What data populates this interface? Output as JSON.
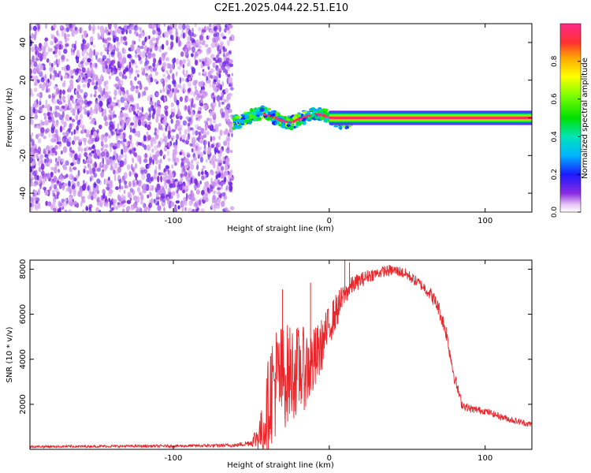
{
  "title": "C2E1.2025.044.22.51.E10",
  "chart_data": [
    {
      "type": "heatmap",
      "name": "spectrogram",
      "xlabel": "Height of straight line (km)",
      "ylabel": "Frequency (Hz)",
      "xlim": [
        -192,
        130
      ],
      "ylim": [
        -50,
        50
      ],
      "xticks": [
        -100,
        0,
        100
      ],
      "yticks": [
        -40,
        -20,
        0,
        20,
        40
      ],
      "colorbar": {
        "label": "Normalized spectral amplitude",
        "range": [
          0,
          1
        ],
        "ticks": [
          "0.0",
          "0.2",
          "0.4",
          "0.6",
          "0.8"
        ]
      },
      "regions": [
        {
          "desc": "noise",
          "x_from": -192,
          "x_to": -62,
          "f_from": -50,
          "f_to": 50,
          "amplitude": [
            0.05,
            0.15
          ]
        },
        {
          "desc": "signal-onset",
          "x_from": -62,
          "x_to": 15,
          "f_center": 0,
          "f_halfwidth": 4,
          "amplitude": [
            0.2,
            0.95
          ]
        },
        {
          "desc": "steady-line",
          "x_from": 0,
          "x_to": 130,
          "f_center": 0,
          "f_halfwidth": 2,
          "amplitude": [
            0.95,
            1.0
          ]
        }
      ]
    },
    {
      "type": "line",
      "name": "snr",
      "xlabel": "Height of straight line (km)",
      "ylabel": "SNR (10 * v/v)",
      "xlim": [
        -192,
        130
      ],
      "ylim": [
        0,
        8400
      ],
      "xticks": [
        -100,
        0,
        100
      ],
      "yticks": [
        2000,
        4000,
        6000,
        8000
      ],
      "color": "#e8262b",
      "envelope_x": [
        -192,
        -100,
        -60,
        -50,
        -42,
        -38,
        -35,
        -30,
        -25,
        -20,
        -15,
        -10,
        -5,
        0,
        5,
        10,
        15,
        20,
        25,
        30,
        35,
        40,
        45,
        50,
        55,
        60,
        65,
        70,
        75,
        80,
        85,
        90,
        100,
        110,
        120,
        130
      ],
      "envelope_y": [
        120,
        150,
        180,
        300,
        900,
        2500,
        3000,
        3200,
        3400,
        3500,
        3600,
        3800,
        4600,
        5500,
        6200,
        6900,
        7300,
        7500,
        7700,
        7800,
        7900,
        7950,
        7900,
        7750,
        7500,
        7250,
        6900,
        6300,
        5200,
        3300,
        2000,
        1800,
        1700,
        1450,
        1250,
        1100
      ],
      "noise_amplitude": [
        50,
        60,
        80,
        150,
        1200,
        2400,
        2600,
        2400,
        2200,
        2000,
        1800,
        1600,
        1200,
        900,
        800,
        500,
        400,
        350,
        300,
        250,
        250,
        250,
        250,
        250,
        250,
        250,
        300,
        350,
        350,
        300,
        200,
        180,
        150,
        150,
        150,
        130
      ],
      "peaks": [
        {
          "x": -30,
          "y": 7100
        },
        {
          "x": 10,
          "y": 8400
        },
        {
          "x": 13,
          "y": 8300
        },
        {
          "x": -12,
          "y": 7400
        }
      ]
    }
  ]
}
